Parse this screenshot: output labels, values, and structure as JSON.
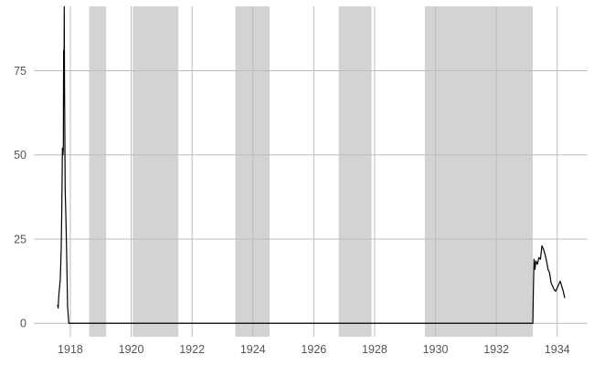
{
  "chart_data": {
    "type": "line",
    "title": "",
    "xlabel": "",
    "ylabel": "",
    "xlim": [
      1916.8,
      1935.0
    ],
    "ylim": [
      -4,
      96
    ],
    "x_ticks": [
      1918,
      1920,
      1922,
      1924,
      1926,
      1928,
      1930,
      1932,
      1934
    ],
    "x_tick_labels": [
      "1918",
      "1920",
      "1922",
      "1924",
      "1926",
      "1928",
      "1930",
      "1932",
      "1934"
    ],
    "y_ticks": [
      0,
      25,
      50,
      75
    ],
    "y_tick_labels": [
      "0",
      "25",
      "50",
      "75"
    ],
    "grid": true,
    "legend": "none",
    "shaded_periods": [
      {
        "start": 1918.62,
        "end": 1919.18
      },
      {
        "start": 1920.05,
        "end": 1921.55
      },
      {
        "start": 1923.42,
        "end": 1924.55
      },
      {
        "start": 1926.82,
        "end": 1927.9
      },
      {
        "start": 1929.65,
        "end": 1933.2
      }
    ],
    "series": [
      {
        "color": "#000000",
        "points": [
          [
            1917.58,
            5.5
          ],
          [
            1917.6,
            4.5
          ],
          [
            1917.62,
            8.0
          ],
          [
            1917.65,
            11.0
          ],
          [
            1917.67,
            13.0
          ],
          [
            1917.7,
            22.0
          ],
          [
            1917.72,
            34.0
          ],
          [
            1917.74,
            52.0
          ],
          [
            1917.76,
            50.0
          ],
          [
            1917.77,
            52.0
          ],
          [
            1917.78,
            81.0
          ],
          [
            1917.79,
            65.0
          ],
          [
            1917.8,
            94.0
          ],
          [
            1917.81,
            70.0
          ],
          [
            1917.83,
            40.0
          ],
          [
            1917.85,
            33.0
          ],
          [
            1917.87,
            25.0
          ],
          [
            1917.88,
            20.0
          ],
          [
            1917.91,
            5.0
          ],
          [
            1917.95,
            0.0
          ],
          [
            1918.0,
            0.0
          ],
          [
            1933.2,
            0.0
          ],
          [
            1933.22,
            11.0
          ],
          [
            1933.24,
            19.0
          ],
          [
            1933.27,
            16.0
          ],
          [
            1933.3,
            18.5
          ],
          [
            1933.35,
            17.5
          ],
          [
            1933.4,
            19.5
          ],
          [
            1933.45,
            19.0
          ],
          [
            1933.5,
            23.0
          ],
          [
            1933.55,
            22.0
          ],
          [
            1933.6,
            20.5
          ],
          [
            1933.65,
            18.5
          ],
          [
            1933.7,
            16.0
          ],
          [
            1933.75,
            15.0
          ],
          [
            1933.8,
            12.0
          ],
          [
            1933.85,
            11.0
          ],
          [
            1933.9,
            10.0
          ],
          [
            1933.95,
            9.5
          ],
          [
            1934.0,
            10.5
          ],
          [
            1934.05,
            11.5
          ],
          [
            1934.1,
            12.5
          ],
          [
            1934.15,
            11.0
          ],
          [
            1934.2,
            9.5
          ],
          [
            1934.25,
            7.5
          ]
        ]
      }
    ]
  }
}
